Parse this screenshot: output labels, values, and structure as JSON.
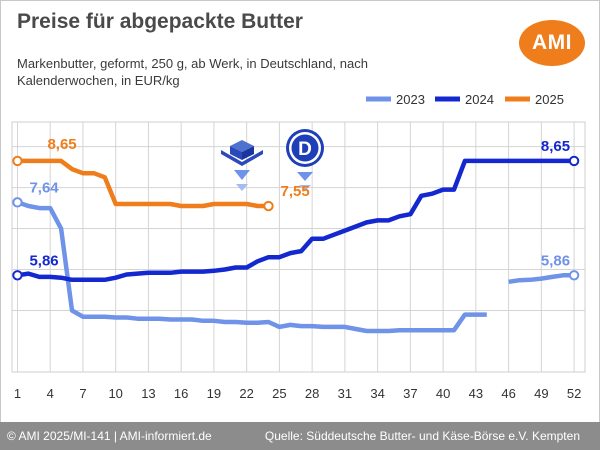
{
  "title": "Preise für abgepackte Butter",
  "subtitle": "Markenbutter, geformt, 250 g, ab Werk, in Deutschland, nach Kalenderwochen, in EUR/kg",
  "logo_text": "AMI",
  "footer": {
    "copyright": "© AMI 2025/MI-141 | AMI-informiert.de",
    "source": "Quelle: Süddeutsche Butter- und Käse-Börse e.V. Kempten"
  },
  "icons": [
    "butter-package-icon",
    "country-d-icon"
  ],
  "chart_data": {
    "type": "line",
    "title": "Preise für abgepackte Butter",
    "xlabel": "",
    "ylabel": "",
    "x_ticks": [
      1,
      4,
      7,
      10,
      13,
      16,
      19,
      22,
      25,
      28,
      31,
      34,
      37,
      40,
      43,
      46,
      49,
      52
    ],
    "xlim": [
      0.5,
      53
    ],
    "ylim": [
      3.5,
      9.6
    ],
    "grid": {
      "vertical": true,
      "horizontal": true
    },
    "legend_position": "top-right",
    "series": [
      {
        "name": "2023",
        "color": "#6f93e8",
        "start_label": "7,64",
        "end_label": "5,86",
        "segments": [
          [
            [
              1,
              7.64
            ],
            [
              2,
              7.55
            ],
            [
              3,
              7.5
            ],
            [
              4,
              7.5
            ],
            [
              5,
              7.0
            ],
            [
              6,
              5.0
            ],
            [
              7,
              4.85
            ],
            [
              8,
              4.85
            ],
            [
              9,
              4.85
            ],
            [
              10,
              4.83
            ],
            [
              11,
              4.83
            ],
            [
              12,
              4.8
            ],
            [
              13,
              4.8
            ],
            [
              14,
              4.8
            ],
            [
              15,
              4.78
            ],
            [
              16,
              4.78
            ],
            [
              17,
              4.78
            ],
            [
              18,
              4.75
            ],
            [
              19,
              4.75
            ],
            [
              20,
              4.72
            ],
            [
              21,
              4.72
            ],
            [
              22,
              4.7
            ],
            [
              23,
              4.7
            ],
            [
              24,
              4.72
            ],
            [
              25,
              4.6
            ],
            [
              26,
              4.65
            ],
            [
              27,
              4.62
            ],
            [
              28,
              4.62
            ],
            [
              29,
              4.6
            ],
            [
              30,
              4.6
            ],
            [
              31,
              4.6
            ],
            [
              32,
              4.55
            ],
            [
              33,
              4.5
            ],
            [
              34,
              4.5
            ],
            [
              35,
              4.5
            ],
            [
              36,
              4.52
            ],
            [
              37,
              4.52
            ],
            [
              38,
              4.52
            ],
            [
              39,
              4.52
            ],
            [
              40,
              4.52
            ],
            [
              41,
              4.52
            ],
            [
              42,
              4.9
            ],
            [
              43,
              4.9
            ],
            [
              44,
              4.9
            ]
          ],
          [
            [
              46,
              5.7
            ],
            [
              47,
              5.74
            ],
            [
              48,
              5.75
            ],
            [
              49,
              5.78
            ],
            [
              50,
              5.82
            ],
            [
              51,
              5.86
            ],
            [
              52,
              5.86
            ]
          ]
        ]
      },
      {
        "name": "2024",
        "color": "#1428d0",
        "start_label": "5,86",
        "end_label": "8,65",
        "segments": [
          [
            [
              1,
              5.86
            ],
            [
              2,
              5.9
            ],
            [
              3,
              5.82
            ],
            [
              4,
              5.82
            ],
            [
              5,
              5.8
            ],
            [
              6,
              5.75
            ],
            [
              7,
              5.75
            ],
            [
              8,
              5.75
            ],
            [
              9,
              5.75
            ],
            [
              10,
              5.8
            ],
            [
              11,
              5.88
            ],
            [
              12,
              5.9
            ],
            [
              13,
              5.92
            ],
            [
              14,
              5.92
            ],
            [
              15,
              5.92
            ],
            [
              16,
              5.95
            ],
            [
              17,
              5.95
            ],
            [
              18,
              5.95
            ],
            [
              19,
              5.97
            ],
            [
              20,
              6.0
            ],
            [
              21,
              6.05
            ],
            [
              22,
              6.05
            ],
            [
              23,
              6.2
            ],
            [
              24,
              6.3
            ],
            [
              25,
              6.3
            ],
            [
              26,
              6.4
            ],
            [
              27,
              6.45
            ],
            [
              28,
              6.75
            ],
            [
              29,
              6.75
            ],
            [
              30,
              6.85
            ],
            [
              31,
              6.95
            ],
            [
              32,
              7.05
            ],
            [
              33,
              7.15
            ],
            [
              34,
              7.2
            ],
            [
              35,
              7.2
            ],
            [
              36,
              7.3
            ],
            [
              37,
              7.35
            ],
            [
              38,
              7.8
            ],
            [
              39,
              7.85
            ],
            [
              40,
              7.95
            ],
            [
              41,
              7.95
            ],
            [
              42,
              8.65
            ],
            [
              43,
              8.65
            ],
            [
              44,
              8.65
            ],
            [
              45,
              8.65
            ],
            [
              46,
              8.65
            ],
            [
              47,
              8.65
            ],
            [
              48,
              8.65
            ],
            [
              49,
              8.65
            ],
            [
              50,
              8.65
            ],
            [
              51,
              8.65
            ],
            [
              52,
              8.65
            ]
          ]
        ]
      },
      {
        "name": "2025",
        "color": "#f07d1b",
        "start_label": "8,65",
        "end_label": "7,55",
        "segments": [
          [
            [
              1,
              8.65
            ],
            [
              2,
              8.65
            ],
            [
              3,
              8.65
            ],
            [
              4,
              8.65
            ],
            [
              5,
              8.65
            ],
            [
              6,
              8.45
            ],
            [
              7,
              8.35
            ],
            [
              8,
              8.35
            ],
            [
              9,
              8.25
            ],
            [
              10,
              7.6
            ],
            [
              11,
              7.6
            ],
            [
              12,
              7.6
            ],
            [
              13,
              7.6
            ],
            [
              14,
              7.6
            ],
            [
              15,
              7.6
            ],
            [
              16,
              7.55
            ],
            [
              17,
              7.55
            ],
            [
              18,
              7.55
            ],
            [
              19,
              7.6
            ],
            [
              20,
              7.6
            ],
            [
              21,
              7.6
            ],
            [
              22,
              7.6
            ],
            [
              23,
              7.55
            ],
            [
              24,
              7.55
            ]
          ]
        ]
      }
    ]
  }
}
